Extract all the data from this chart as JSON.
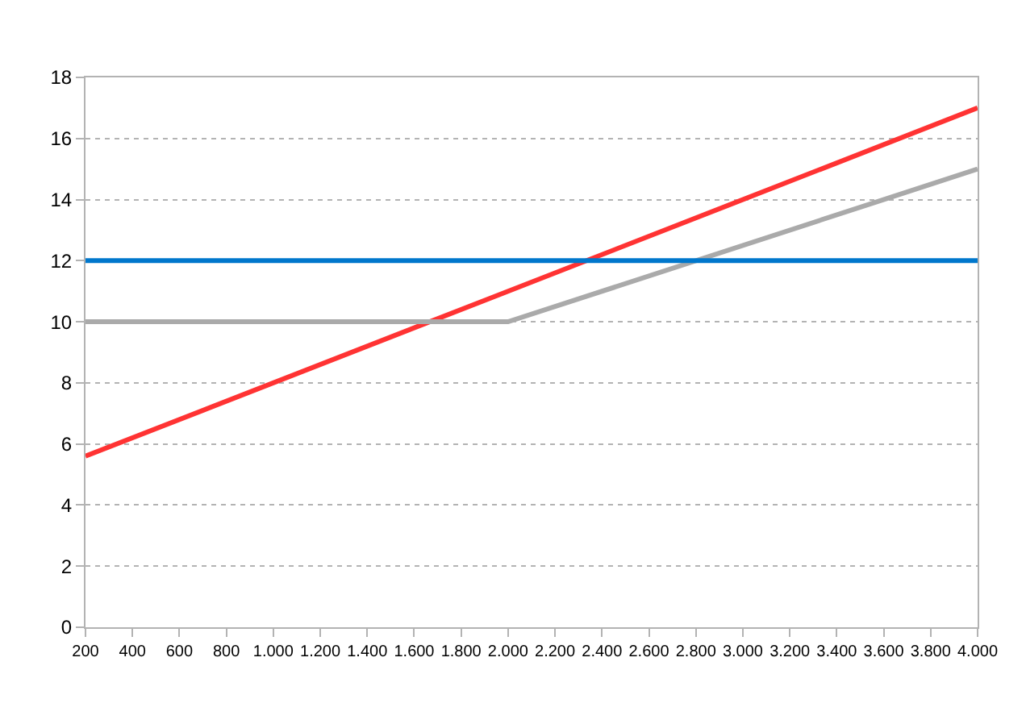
{
  "chart_data": {
    "type": "line",
    "x": [
      200,
      2000,
      4000
    ],
    "series": [
      {
        "color": "#ff3333",
        "values": [
          5.6,
          11,
          17
        ]
      },
      {
        "color": "#aaaaaa",
        "values": [
          10,
          10,
          15
        ]
      },
      {
        "color": "#0077cc",
        "values": [
          12,
          12,
          12
        ]
      }
    ],
    "xlim": [
      200,
      4000
    ],
    "xticks": [
      {
        "value": 200,
        "label": "200"
      },
      {
        "value": 400,
        "label": "400"
      },
      {
        "value": 600,
        "label": "600"
      },
      {
        "value": 800,
        "label": "800"
      },
      {
        "value": 1000,
        "label": "1.000"
      },
      {
        "value": 1200,
        "label": "1.200"
      },
      {
        "value": 1400,
        "label": "1.400"
      },
      {
        "value": 1600,
        "label": "1.600"
      },
      {
        "value": 1800,
        "label": "1.800"
      },
      {
        "value": 2000,
        "label": "2.000"
      },
      {
        "value": 2200,
        "label": "2.200"
      },
      {
        "value": 2400,
        "label": "2.400"
      },
      {
        "value": 2600,
        "label": "2.600"
      },
      {
        "value": 2800,
        "label": "2.800"
      },
      {
        "value": 3000,
        "label": "3.000"
      },
      {
        "value": 3200,
        "label": "3.200"
      },
      {
        "value": 3400,
        "label": "3.400"
      },
      {
        "value": 3600,
        "label": "3.600"
      },
      {
        "value": 3800,
        "label": "3.800"
      },
      {
        "value": 4000,
        "label": "4.000"
      }
    ],
    "ylim": [
      0,
      18
    ],
    "yticks": [
      0,
      2,
      4,
      6,
      8,
      10,
      12,
      14,
      16,
      18
    ],
    "grid": "y",
    "marker": "none",
    "line_style": "solid"
  }
}
